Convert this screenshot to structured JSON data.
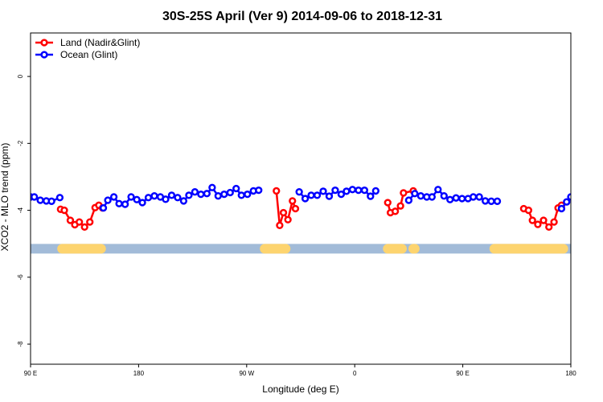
{
  "chart_data": {
    "type": "line",
    "title": "30S-25S April (Ver 9)   2014-09-06 to 2018-12-31",
    "xlabel": "Longitude (deg E)",
    "ylabel": "XCO2 - MLO trend (ppm)",
    "xlim": [
      90,
      450
    ],
    "ylim": [
      -8.6,
      1.3
    ],
    "x_ticks": [
      90,
      162,
      234,
      306,
      378,
      450
    ],
    "x_tick_labels": [
      "90 E",
      "180",
      "90 W",
      "0",
      "90 E",
      "180"
    ],
    "y_ticks": [
      0,
      -2,
      -4,
      -6,
      -8
    ],
    "y_tick_labels": [
      "0",
      "-2",
      "-4",
      "-6",
      "-8"
    ],
    "grid": false,
    "legend_position": "top-left",
    "series": [
      {
        "name": "Land (Nadir&Glint)",
        "color": "#ff0000",
        "points": [
          [
            110,
            -3.97
          ],
          [
            112.5,
            -4
          ],
          [
            116.5,
            -4.3
          ],
          [
            119.5,
            -4.43
          ],
          [
            122.5,
            -4.35
          ],
          [
            126,
            -4.5
          ],
          [
            129.5,
            -4.35
          ],
          [
            133,
            -3.92
          ],
          [
            135.5,
            -3.85
          ],
          [
            138,
            -3.93
          ],
          [
            253.8,
            -3.42
          ],
          [
            256,
            -4.45
          ],
          [
            258.5,
            -4.07
          ],
          [
            261.5,
            -4.28
          ],
          [
            264.5,
            -3.72
          ],
          [
            266.5,
            -3.95
          ],
          [
            328,
            -3.77
          ],
          [
            329.8,
            -4.07
          ],
          [
            333,
            -4.03
          ],
          [
            336.5,
            -3.87
          ],
          [
            338.5,
            -3.48
          ],
          [
            345,
            -3.42
          ],
          [
            418.6,
            -3.95
          ],
          [
            421.8,
            -4
          ],
          [
            424.4,
            -4.3
          ],
          [
            428,
            -4.42
          ],
          [
            431.8,
            -4.3
          ],
          [
            435.4,
            -4.5
          ],
          [
            438.8,
            -4.35
          ],
          [
            441.5,
            -3.93
          ],
          [
            443.8,
            -3.85
          ]
        ]
      },
      {
        "name": "Ocean (Glint)",
        "color": "#0000ff",
        "points": [
          [
            90,
            -3.6
          ],
          [
            92.5,
            -3.6
          ],
          [
            96.5,
            -3.7
          ],
          [
            100.5,
            -3.72
          ],
          [
            104,
            -3.73
          ],
          [
            109.5,
            -3.62
          ],
          [
            138.5,
            -3.93
          ],
          [
            141.5,
            -3.7
          ],
          [
            145.5,
            -3.6
          ],
          [
            149,
            -3.8
          ],
          [
            153,
            -3.82
          ],
          [
            157,
            -3.6
          ],
          [
            160.8,
            -3.68
          ],
          [
            164.5,
            -3.77
          ],
          [
            168.5,
            -3.62
          ],
          [
            172.5,
            -3.57
          ],
          [
            176.5,
            -3.6
          ],
          [
            180,
            -3.67
          ],
          [
            184,
            -3.55
          ],
          [
            188,
            -3.62
          ],
          [
            192,
            -3.72
          ],
          [
            195.5,
            -3.55
          ],
          [
            199.5,
            -3.45
          ],
          [
            203.5,
            -3.52
          ],
          [
            207.5,
            -3.5
          ],
          [
            211,
            -3.32
          ],
          [
            215,
            -3.57
          ],
          [
            219,
            -3.52
          ],
          [
            223,
            -3.47
          ],
          [
            227,
            -3.35
          ],
          [
            230.5,
            -3.55
          ],
          [
            234.5,
            -3.52
          ],
          [
            238.5,
            -3.42
          ],
          [
            242,
            -3.4
          ],
          [
            269,
            -3.45
          ],
          [
            273,
            -3.65
          ],
          [
            277,
            -3.55
          ],
          [
            281,
            -3.55
          ],
          [
            285,
            -3.43
          ],
          [
            289,
            -3.58
          ],
          [
            293,
            -3.4
          ],
          [
            297,
            -3.52
          ],
          [
            300.5,
            -3.43
          ],
          [
            304.5,
            -3.38
          ],
          [
            308.5,
            -3.4
          ],
          [
            312.5,
            -3.4
          ],
          [
            316.5,
            -3.58
          ],
          [
            320,
            -3.42
          ],
          [
            342,
            -3.7
          ],
          [
            346,
            -3.5
          ],
          [
            350,
            -3.57
          ],
          [
            354,
            -3.6
          ],
          [
            357.5,
            -3.6
          ],
          [
            361.5,
            -3.38
          ],
          [
            365.5,
            -3.57
          ],
          [
            369.5,
            -3.68
          ],
          [
            373.5,
            -3.63
          ],
          [
            377.5,
            -3.65
          ],
          [
            381.5,
            -3.65
          ],
          [
            385,
            -3.6
          ],
          [
            389,
            -3.6
          ],
          [
            393,
            -3.72
          ],
          [
            397,
            -3.73
          ],
          [
            401,
            -3.73
          ],
          [
            443.8,
            -3.95
          ],
          [
            447.2,
            -3.75
          ],
          [
            450,
            -3.6
          ],
          [
            454,
            -3.82
          ],
          [
            458,
            -3.83
          ],
          [
            461.5,
            -3.62
          ]
        ]
      }
    ],
    "bottom_band": {
      "y": -5.15,
      "ocean_color": "#a2bbd8",
      "land_color": "#fdd46f",
      "land_ranges": [
        [
          111,
          137
        ],
        [
          246,
          260
        ],
        [
          328,
          337.5
        ],
        [
          345,
          346
        ],
        [
          399,
          445
        ]
      ]
    }
  }
}
